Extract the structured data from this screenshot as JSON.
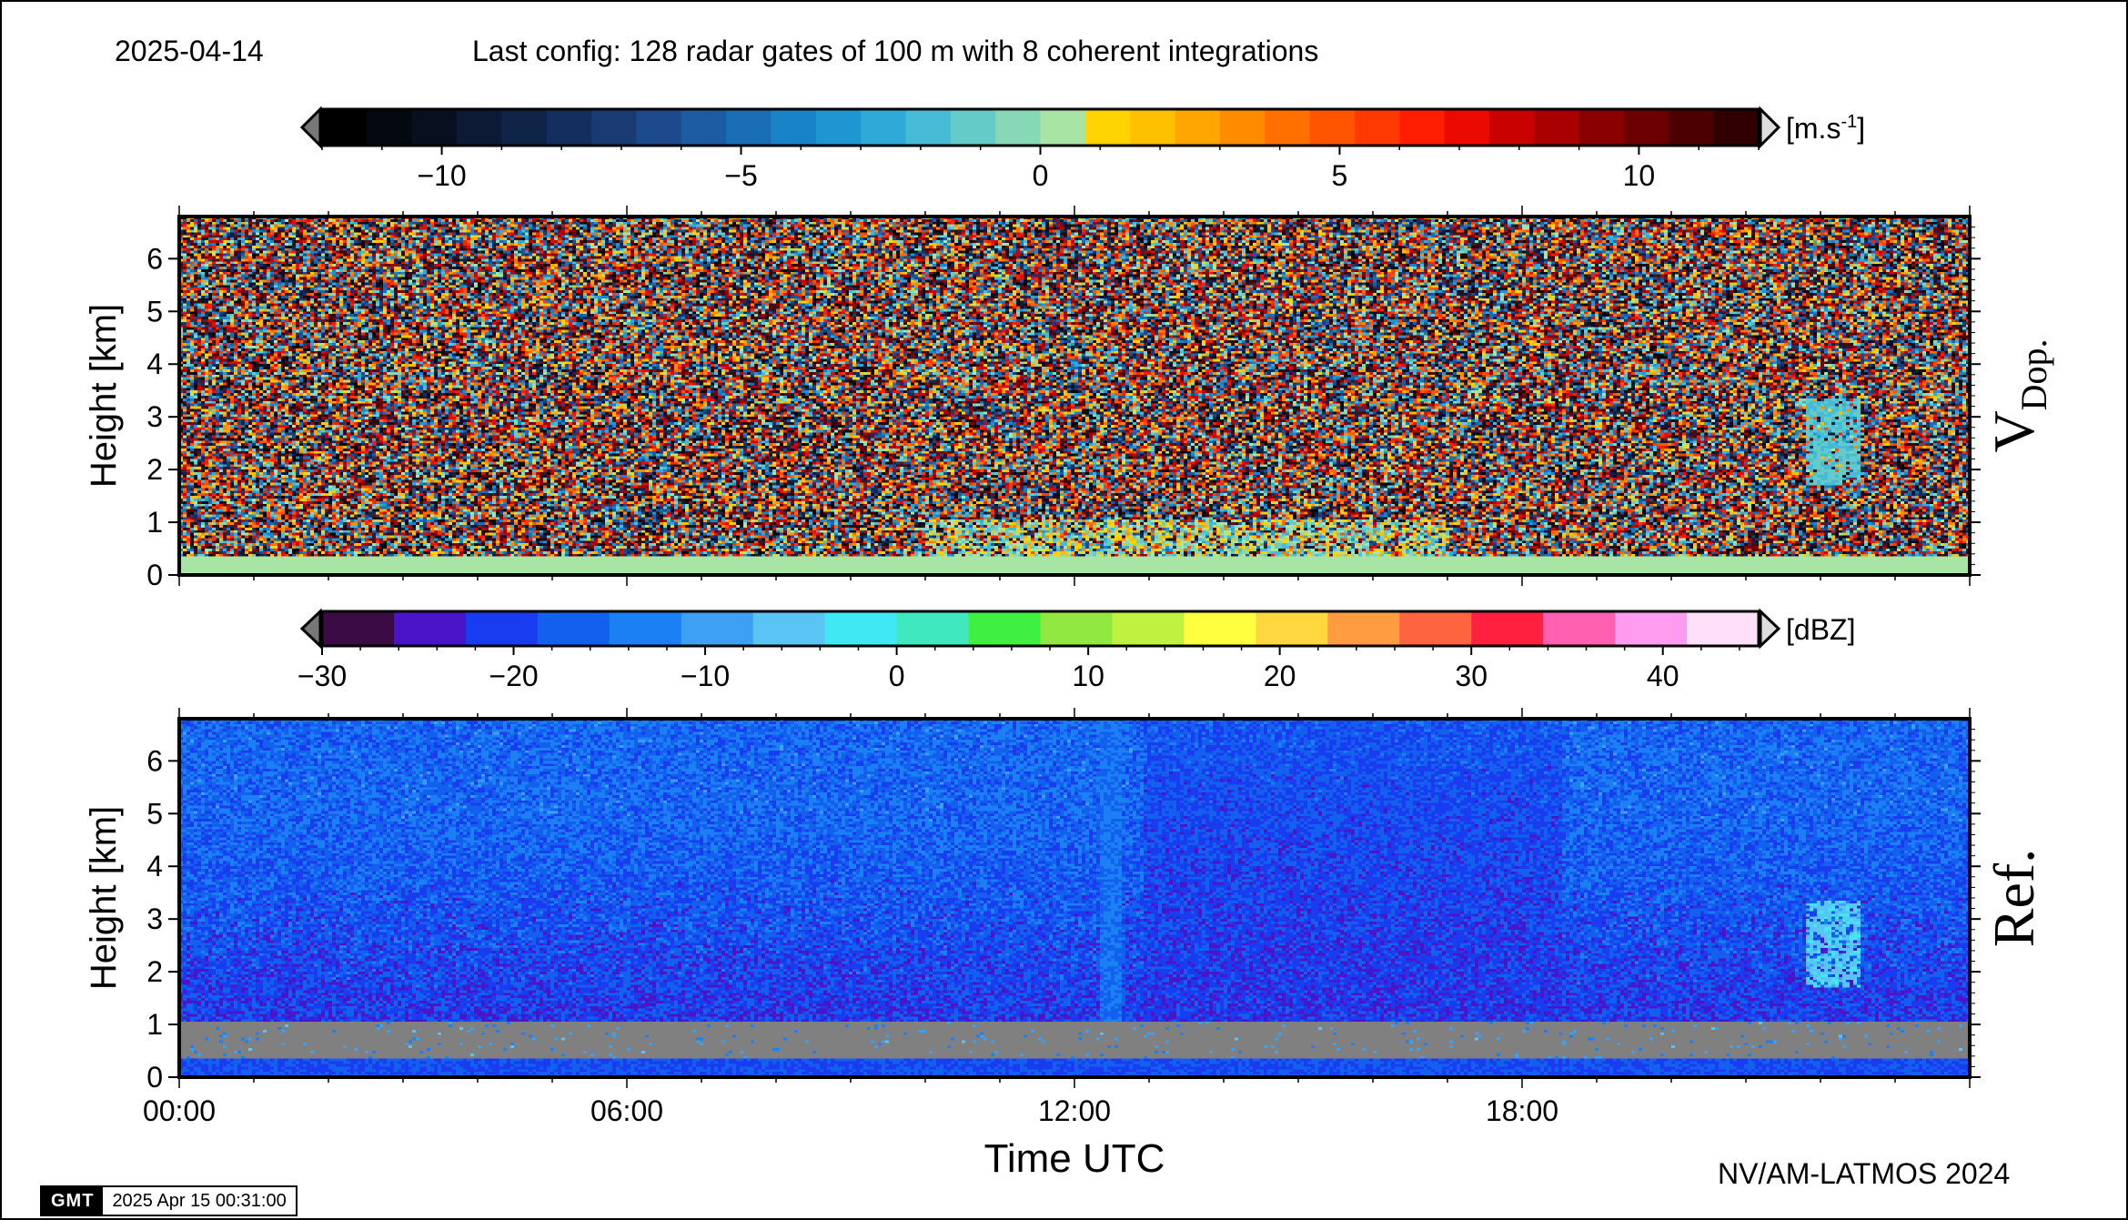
{
  "header": {
    "date": "2025-04-14",
    "config": "Last config: 128 radar gates of 100 m with 8 coherent integrations"
  },
  "footer": {
    "credit": "NV/AM-LATMOS 2024",
    "gmt_logo": "GMT",
    "timestamp": "2025 Apr 15 00:31:00"
  },
  "chart_data": [
    {
      "type": "heatmap",
      "title": "V Dop.",
      "panel_label_main": "V",
      "panel_label_sub": "Dop.",
      "ylabel": "Height [km]",
      "xlabel": "",
      "ylim": [
        0,
        6.8
      ],
      "xlim_hours": [
        0,
        24
      ],
      "y_ticks": [
        "0",
        "1",
        "2",
        "3",
        "4",
        "5",
        "6"
      ],
      "colorbar": {
        "unit_main": "[m.s",
        "unit_sup": "-1",
        "unit_end": "]",
        "range": [
          -12,
          12
        ],
        "step": 1,
        "ticks": [
          -10,
          -5,
          0,
          5,
          10
        ],
        "tick_labels": [
          "−10",
          "−5",
          "0",
          "5",
          "10"
        ],
        "colors": [
          "#000000",
          "#040810",
          "#081020",
          "#0c1a35",
          "#102448",
          "#142e5e",
          "#1a3a74",
          "#1d4a8c",
          "#1c5ca2",
          "#1a6eb6",
          "#1a82c6",
          "#1f96d2",
          "#2fa9d8",
          "#47bbd6",
          "#65cbc9",
          "#86d8b6",
          "#a8e4a3",
          "#ffd400",
          "#ffc000",
          "#ffa600",
          "#ff8c00",
          "#ff7000",
          "#ff5500",
          "#ff3a00",
          "#ff1e00",
          "#ea0a00",
          "#c80000",
          "#a80000",
          "#880000",
          "#6a0000",
          "#4c0000",
          "#300000"
        ]
      },
      "features": [
        {
          "name": "surface clutter layer",
          "height_km": [
            0,
            0.3
          ],
          "velocity_ms": 0.3
        },
        {
          "name": "boundary layer echo",
          "time_h": [
            10,
            17
          ],
          "height_km": [
            0.3,
            1.0
          ]
        },
        {
          "name": "cloud patch",
          "time_h": [
            21.8,
            22.5
          ],
          "height_km": [
            1.7,
            3.3
          ],
          "velocity_ms": -1.5
        }
      ]
    },
    {
      "type": "heatmap",
      "title": "Ref.",
      "ylabel": "Height [km]",
      "xlabel": "Time UTC",
      "ylim": [
        0,
        6.8
      ],
      "xlim_hours": [
        0,
        24
      ],
      "x_ticks": [
        "00:00",
        "06:00",
        "12:00",
        "18:00"
      ],
      "y_ticks": [
        "0",
        "1",
        "2",
        "3",
        "4",
        "5",
        "6"
      ],
      "colorbar": {
        "unit": "[dBZ]",
        "range": [
          -30,
          45
        ],
        "ticks": [
          -30,
          -20,
          -10,
          0,
          10,
          20,
          30,
          40
        ],
        "tick_labels": [
          "−30",
          "−20",
          "−10",
          "0",
          "10",
          "20",
          "30",
          "40"
        ],
        "colors": [
          "#3a0b44",
          "#4a14c8",
          "#1a3cf0",
          "#1460ee",
          "#1a80f4",
          "#3ea0f4",
          "#5ac4f4",
          "#40e8f4",
          "#40e8c0",
          "#40f040",
          "#90e840",
          "#c0f040",
          "#ffff40",
          "#ffd840",
          "#ff9c40",
          "#ff6440",
          "#ff2040",
          "#ff60b0",
          "#ff9cf0",
          "#ffe0f8"
        ]
      },
      "features": [
        {
          "name": "surface clutter",
          "height_km": [
            0,
            0.3
          ]
        },
        {
          "name": "below-threshold region",
          "height_km": [
            0.3,
            1.0
          ],
          "color": "#808080"
        },
        {
          "name": "precipitation column",
          "time_h": [
            12.3,
            12.6
          ],
          "height_km": [
            1.0,
            6.8
          ],
          "reflectivity_dbz": -15
        },
        {
          "name": "precipitation period",
          "time_h": [
            12.9,
            18.5
          ],
          "height_km": [
            1.0,
            6.8
          ],
          "reflectivity_dbz": -18
        },
        {
          "name": "cloud patch",
          "time_h": [
            21.8,
            22.5
          ],
          "height_km": [
            1.7,
            3.3
          ],
          "reflectivity_dbz": -8
        }
      ]
    }
  ]
}
